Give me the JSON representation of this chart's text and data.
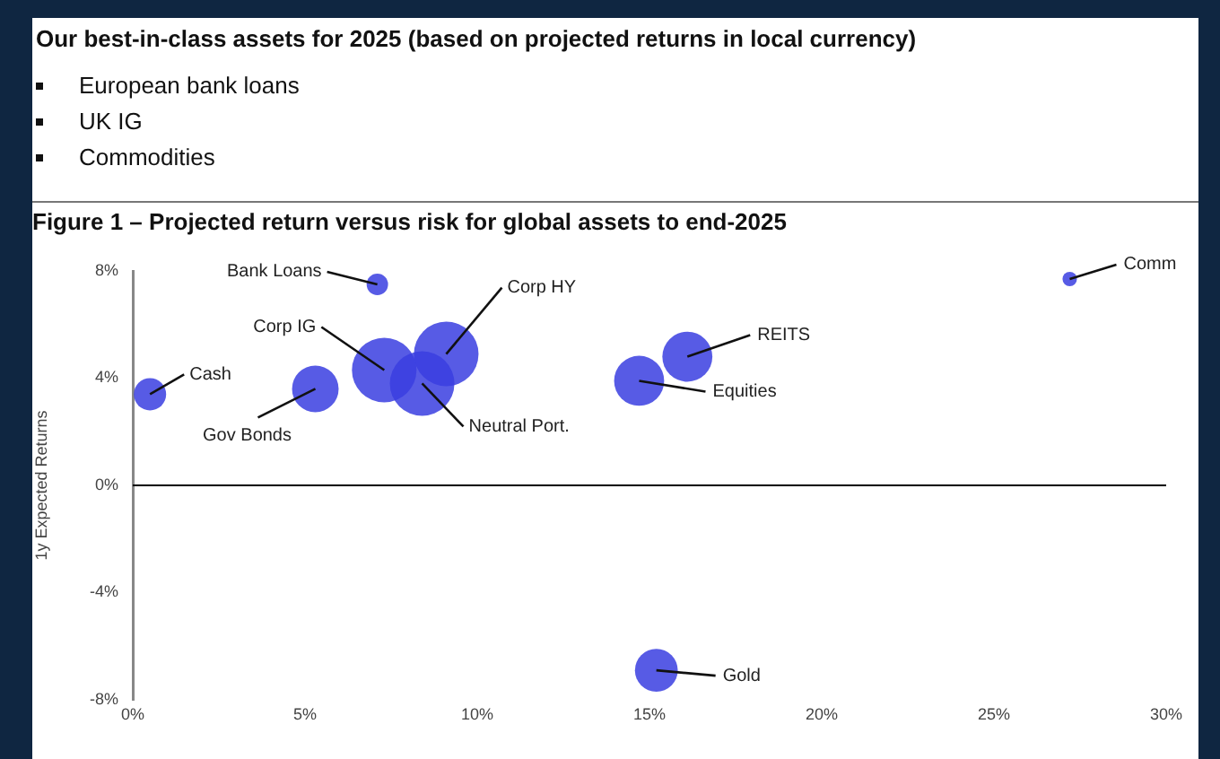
{
  "chart_data": {
    "type": "bubble",
    "title": "Our best-in-class assets for 2025 (based on projected returns in local currency)",
    "annotations": [
      "European bank loans",
      "UK IG",
      "Commodities"
    ],
    "subtitle": "Figure 1 – Projected return versus risk for global assets to end-2025",
    "ylabel": "1y Expected Returns",
    "series": [
      {
        "name": "Cash",
        "color": "#3a3ee0",
        "x": [
          0.5
        ],
        "values": [
          3.4
        ],
        "sizes": [
          0.25
        ]
      },
      {
        "name": "Gov Bonds",
        "color": "#3a3ee0",
        "x": [
          5.3
        ],
        "values": [
          3.6
        ],
        "sizes": [
          0.52
        ]
      },
      {
        "name": "Bank Loans",
        "color": "#3a3ee0",
        "x": [
          7.1
        ],
        "values": [
          7.5
        ],
        "sizes": [
          0.11
        ]
      },
      {
        "name": "Corp IG",
        "color": "#3a3ee0",
        "x": [
          7.3
        ],
        "values": [
          4.3
        ],
        "sizes": [
          1
        ]
      },
      {
        "name": "Neutral Port.",
        "color": "#3a3ee0",
        "x": [
          8.4
        ],
        "values": [
          3.8
        ],
        "sizes": [
          1
        ]
      },
      {
        "name": "Corp HY",
        "color": "#3a3ee0",
        "x": [
          9.1
        ],
        "values": [
          4.9
        ],
        "sizes": [
          1
        ]
      },
      {
        "name": "Equities",
        "color": "#3a3ee0",
        "x": [
          14.7
        ],
        "values": [
          3.9
        ],
        "sizes": [
          0.6
        ]
      },
      {
        "name": "REITS",
        "color": "#3a3ee0",
        "x": [
          16.1
        ],
        "values": [
          4.8
        ],
        "sizes": [
          0.6
        ]
      },
      {
        "name": "Comm",
        "color": "#3a3ee0",
        "x": [
          27.2
        ],
        "values": [
          7.7
        ],
        "sizes": [
          0.05
        ]
      },
      {
        "name": "Gold",
        "color": "#3a3ee0",
        "x": [
          15.2
        ],
        "values": [
          -6.9
        ],
        "sizes": [
          0.44
        ]
      }
    ],
    "xlim": [
      0,
      30
    ],
    "xticks": [
      {
        "value": 0,
        "label": "0%"
      },
      {
        "value": 5,
        "label": "5%"
      },
      {
        "value": 10,
        "label": "10%"
      },
      {
        "value": 15,
        "label": "15%"
      },
      {
        "value": 20,
        "label": "20%"
      },
      {
        "value": 25,
        "label": "25%"
      },
      {
        "value": 30,
        "label": "30%"
      }
    ],
    "ylim": [
      -8,
      8
    ],
    "yticks": [
      {
        "value": -8,
        "label": "-8%"
      },
      {
        "value": -4,
        "label": "-4%"
      },
      {
        "value": 0,
        "label": "0%"
      },
      {
        "value": 4,
        "label": "4%"
      },
      {
        "value": 8,
        "label": "8%"
      }
    ],
    "ref_lines": [
      {
        "axis": "y",
        "value": 0,
        "color": "#000000"
      }
    ],
    "grid": false,
    "legend": false
  }
}
